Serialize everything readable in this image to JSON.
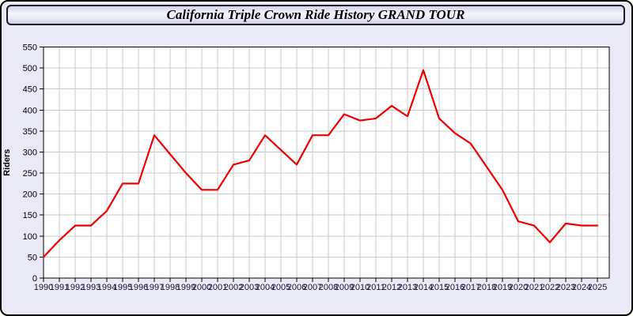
{
  "window": {
    "title": "California Triple Crown Ride History GRAND TOUR"
  },
  "colors": {
    "page_bg": "#eaeaf6",
    "frame_border": "#000000",
    "plot_bg": "#ffffff",
    "grid": "#c9c9c9",
    "axis": "#000000",
    "line": "#ee0000",
    "y_tick_label": "#000000",
    "x_tick_label": "#151530"
  },
  "chart_data": {
    "type": "line",
    "title": "California Triple Crown Ride History GRAND TOUR",
    "xlabel": "",
    "ylabel": "Riders",
    "x": [
      1990,
      1991,
      1992,
      1993,
      1994,
      1995,
      1996,
      1997,
      1998,
      1999,
      2000,
      2001,
      2002,
      2003,
      2004,
      2005,
      2006,
      2007,
      2008,
      2009,
      2010,
      2011,
      2012,
      2013,
      2014,
      2015,
      2016,
      2017,
      2018,
      2019,
      2020,
      2021,
      2022,
      2023,
      2024,
      2025
    ],
    "series": [
      {
        "name": "Riders",
        "color": "#ee0000",
        "values": [
          50,
          90,
          125,
          125,
          160,
          225,
          225,
          340,
          295,
          250,
          210,
          210,
          270,
          280,
          340,
          305,
          270,
          340,
          340,
          390,
          375,
          380,
          410,
          385,
          495,
          380,
          345,
          320,
          265,
          210,
          135,
          125,
          85,
          130,
          125,
          125
        ]
      }
    ],
    "ylim": [
      0,
      550
    ],
    "ytick_step": 50,
    "grid": true,
    "legend": "none"
  }
}
